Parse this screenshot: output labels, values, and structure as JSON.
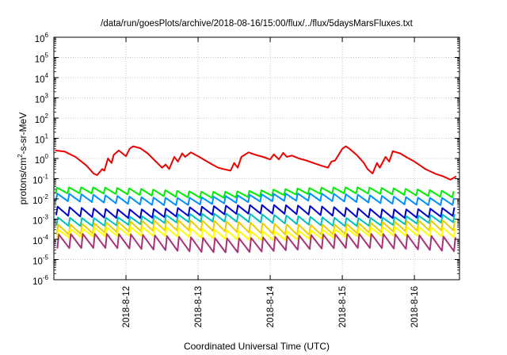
{
  "chart_data": {
    "type": "line",
    "title": "/data/run/goesPlots/archive/2018-08-16/15:00/flux/../flux/5daysMarsFluxes.txt",
    "xlabel": "Coordinated Universal Time (UTC)",
    "ylabel": {
      "prefix": "protons/cm",
      "sup": "2",
      "suffix": "-s-sr-MeV"
    },
    "yscale": "log",
    "ylim_exponent": [
      -6,
      6
    ],
    "ytick_base": "10",
    "yticks": [
      -6,
      -5,
      -4,
      -3,
      -2,
      -1,
      0,
      1,
      2,
      3,
      4,
      5,
      6
    ],
    "xlim_days": [
      "2018-08-11 00:00",
      "2018-08-16 15:00"
    ],
    "xticks": [
      "2018-8-12",
      "2018-8-13",
      "2018-8-14",
      "2018-8-15",
      "2018-8-16"
    ],
    "grid": true,
    "series": [
      {
        "color": "#ee0000",
        "x": [
          0.02,
          0.15,
          0.3,
          0.45,
          0.55,
          0.6,
          0.67,
          0.7,
          0.75,
          0.8,
          0.83,
          0.9,
          1.0,
          1.05,
          1.1,
          1.2,
          1.3,
          1.4,
          1.5,
          1.55,
          1.6,
          1.67,
          1.72,
          1.78,
          1.82,
          1.9,
          2.0,
          2.1,
          2.2,
          2.28,
          2.35,
          2.45,
          2.5,
          2.55,
          2.6,
          2.7,
          2.8,
          2.9,
          3.0,
          3.05,
          3.12,
          3.18,
          3.23,
          3.3,
          3.4,
          3.5,
          3.6,
          3.7,
          3.8,
          3.85,
          3.9,
          4.0,
          4.05,
          4.1,
          4.2,
          4.3,
          4.35,
          4.42,
          4.48,
          4.52,
          4.6,
          4.65,
          4.7,
          4.8,
          4.9,
          5.0,
          5.08,
          5.15,
          5.2,
          5.3,
          5.4,
          5.5,
          5.58
        ],
        "values": [
          2.5,
          2.2,
          1.2,
          0.45,
          0.18,
          0.15,
          0.3,
          0.25,
          1.0,
          0.6,
          1.5,
          2.5,
          1.3,
          3.0,
          4.0,
          3.2,
          1.8,
          0.8,
          0.35,
          0.5,
          0.3,
          1.2,
          0.7,
          1.8,
          1.2,
          2.0,
          1.3,
          0.8,
          0.5,
          0.35,
          0.3,
          0.25,
          0.6,
          0.35,
          1.2,
          2.0,
          1.5,
          1.2,
          0.9,
          1.6,
          0.9,
          1.9,
          1.2,
          1.4,
          1.0,
          0.8,
          0.6,
          0.45,
          0.35,
          0.7,
          0.8,
          3.0,
          4.0,
          3.0,
          1.5,
          0.6,
          0.3,
          0.18,
          0.6,
          0.35,
          1.2,
          0.7,
          2.3,
          1.8,
          1.1,
          0.7,
          0.45,
          0.3,
          0.25,
          0.17,
          0.13,
          0.09,
          0.13
        ]
      },
      {
        "color": "#00ee00",
        "baseline_values": [
          0.03,
          0.015
        ],
        "note": "sawtooth"
      },
      {
        "color": "#0090ff",
        "baseline_values": [
          0.015,
          0.0065
        ]
      },
      {
        "color": "#0000cc",
        "baseline_values": [
          0.004,
          0.0015
        ]
      },
      {
        "color": "#00c0c0",
        "baseline_values": [
          0.0015,
          0.0006
        ]
      },
      {
        "color": "#eecc00",
        "baseline_values": [
          0.0007,
          0.00022
        ]
      },
      {
        "color": "#ffff00",
        "baseline_values": [
          0.00032,
          0.00012
        ]
      },
      {
        "color": "#aa3377",
        "baseline_values": [
          0.00015,
          3e-05
        ]
      }
    ]
  }
}
